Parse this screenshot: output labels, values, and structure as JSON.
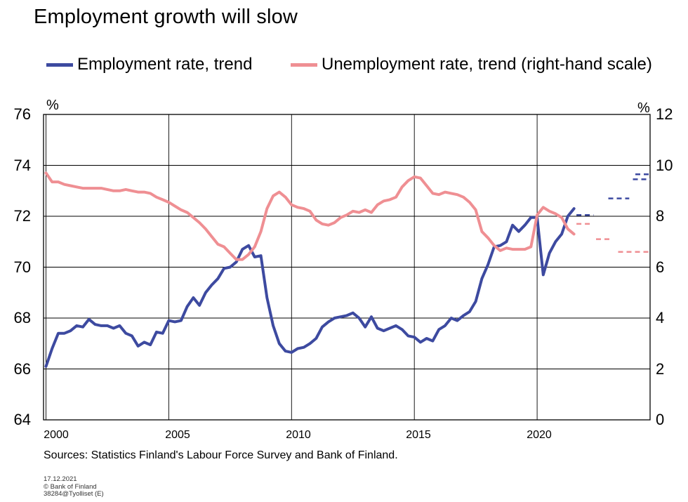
{
  "chart_data": {
    "type": "line",
    "title": "Employment growth will slow",
    "left_axis": {
      "unit": "%",
      "ylim": [
        64,
        76
      ],
      "ticks": [
        64,
        66,
        68,
        70,
        72,
        74,
        76
      ]
    },
    "right_axis": {
      "unit": "%",
      "ylim": [
        0,
        12
      ],
      "ticks": [
        0,
        2,
        4,
        6,
        8,
        10,
        12
      ]
    },
    "x_axis": {
      "xlim": [
        1999.9,
        2024.6
      ],
      "ticks": [
        2000,
        2005,
        2010,
        2015,
        2020
      ],
      "grid": true
    },
    "legend_placement": "top",
    "series": [
      {
        "name": "Employment rate, trend",
        "axis": "left",
        "color": "#3d4aa0",
        "x": [
          2000.0,
          2000.25,
          2000.5,
          2000.75,
          2001.0,
          2001.25,
          2001.5,
          2001.75,
          2002.0,
          2002.25,
          2002.5,
          2002.75,
          2003.0,
          2003.25,
          2003.5,
          2003.75,
          2004.0,
          2004.25,
          2004.5,
          2004.75,
          2005.0,
          2005.25,
          2005.5,
          2005.75,
          2006.0,
          2006.25,
          2006.5,
          2006.75,
          2007.0,
          2007.25,
          2007.5,
          2007.75,
          2008.0,
          2008.25,
          2008.5,
          2008.75,
          2009.0,
          2009.25,
          2009.5,
          2009.75,
          2010.0,
          2010.25,
          2010.5,
          2010.75,
          2011.0,
          2011.25,
          2011.5,
          2011.75,
          2012.0,
          2012.25,
          2012.5,
          2012.75,
          2013.0,
          2013.25,
          2013.5,
          2013.75,
          2014.0,
          2014.25,
          2014.5,
          2014.75,
          2015.0,
          2015.25,
          2015.5,
          2015.75,
          2016.0,
          2016.25,
          2016.5,
          2016.75,
          2017.0,
          2017.25,
          2017.5,
          2017.75,
          2018.0,
          2018.25,
          2018.5,
          2018.75,
          2019.0,
          2019.25,
          2019.5,
          2019.75,
          2020.0,
          2020.25,
          2020.5,
          2020.75,
          2021.0,
          2021.25,
          2021.5
        ],
        "values": [
          66.1,
          66.8,
          67.4,
          67.4,
          67.5,
          67.7,
          67.65,
          67.95,
          67.75,
          67.7,
          67.7,
          67.6,
          67.7,
          67.4,
          67.3,
          66.9,
          67.05,
          66.95,
          67.45,
          67.4,
          67.9,
          67.85,
          67.9,
          68.45,
          68.8,
          68.5,
          69.0,
          69.3,
          69.55,
          69.95,
          70.0,
          70.2,
          70.7,
          70.85,
          70.4,
          70.45,
          68.8,
          67.7,
          67.0,
          66.7,
          66.65,
          66.8,
          66.85,
          67.0,
          67.2,
          67.65,
          67.85,
          68.0,
          68.05,
          68.1,
          68.2,
          68.0,
          67.65,
          68.05,
          67.6,
          67.5,
          67.6,
          67.7,
          67.55,
          67.3,
          67.25,
          67.05,
          67.2,
          67.1,
          67.55,
          67.7,
          68.0,
          67.9,
          68.1,
          68.25,
          68.65,
          69.55,
          70.1,
          70.8,
          70.85,
          71.0,
          71.65,
          71.4,
          71.65,
          71.95,
          71.95,
          69.7,
          70.55,
          71.0,
          71.3,
          72.0,
          72.3
        ]
      },
      {
        "name": "Unemployment rate, trend (right-hand scale)",
        "axis": "right",
        "color": "#ef8f93",
        "x": [
          2000.0,
          2000.25,
          2000.5,
          2000.75,
          2001.0,
          2001.25,
          2001.5,
          2001.75,
          2002.0,
          2002.25,
          2002.5,
          2002.75,
          2003.0,
          2003.25,
          2003.5,
          2003.75,
          2004.0,
          2004.25,
          2004.5,
          2004.75,
          2005.0,
          2005.25,
          2005.5,
          2005.75,
          2006.0,
          2006.25,
          2006.5,
          2006.75,
          2007.0,
          2007.25,
          2007.5,
          2007.75,
          2008.0,
          2008.25,
          2008.5,
          2008.75,
          2009.0,
          2009.25,
          2009.5,
          2009.75,
          2010.0,
          2010.25,
          2010.5,
          2010.75,
          2011.0,
          2011.25,
          2011.5,
          2011.75,
          2012.0,
          2012.25,
          2012.5,
          2012.75,
          2013.0,
          2013.25,
          2013.5,
          2013.75,
          2014.0,
          2014.25,
          2014.5,
          2014.75,
          2015.0,
          2015.25,
          2015.5,
          2015.75,
          2016.0,
          2016.25,
          2016.5,
          2016.75,
          2017.0,
          2017.25,
          2017.5,
          2017.75,
          2018.0,
          2018.25,
          2018.5,
          2018.75,
          2019.0,
          2019.25,
          2019.5,
          2019.75,
          2020.0,
          2020.25,
          2020.5,
          2020.75,
          2021.0,
          2021.25,
          2021.5
        ],
        "values": [
          9.7,
          9.35,
          9.35,
          9.25,
          9.2,
          9.15,
          9.1,
          9.1,
          9.1,
          9.1,
          9.05,
          9.0,
          9.0,
          9.05,
          9.0,
          8.95,
          8.95,
          8.9,
          8.75,
          8.65,
          8.55,
          8.4,
          8.25,
          8.15,
          7.95,
          7.75,
          7.5,
          7.2,
          6.9,
          6.8,
          6.55,
          6.3,
          6.3,
          6.5,
          6.8,
          7.4,
          8.3,
          8.8,
          8.95,
          8.75,
          8.45,
          8.35,
          8.3,
          8.2,
          7.85,
          7.7,
          7.65,
          7.75,
          7.95,
          8.05,
          8.2,
          8.15,
          8.25,
          8.15,
          8.45,
          8.6,
          8.65,
          8.75,
          9.15,
          9.4,
          9.55,
          9.5,
          9.2,
          8.9,
          8.85,
          8.95,
          8.9,
          8.85,
          8.75,
          8.55,
          8.25,
          7.4,
          7.15,
          6.85,
          6.65,
          6.75,
          6.7,
          6.7,
          6.7,
          6.8,
          8.05,
          8.35,
          8.2,
          8.1,
          7.95,
          7.5,
          7.3
        ]
      }
    ],
    "forecasts": [
      {
        "series": "Employment rate, trend",
        "axis": "left",
        "color": "#3d4aa0",
        "segments": [
          {
            "x": [
              2021.6,
              2022.3
            ],
            "y": 72.05
          },
          {
            "x": [
              2022.9,
              2023.75
            ],
            "y": 72.7
          },
          {
            "x": [
              2023.9,
              2024.6
            ],
            "y": 73.45
          },
          {
            "x": [
              2024.0,
              2024.6
            ],
            "y": 73.65
          }
        ]
      },
      {
        "series": "Unemployment rate, trend (right-hand scale)",
        "axis": "right",
        "color": "#ef8f93",
        "segments": [
          {
            "x": [
              2021.6,
              2022.2
            ],
            "y": 7.7
          },
          {
            "x": [
              2022.4,
              2023.05
            ],
            "y": 7.1
          },
          {
            "x": [
              2023.3,
              2024.6
            ],
            "y": 6.6
          }
        ]
      }
    ]
  },
  "title": "Employment growth will slow",
  "legend": [
    {
      "label": "Employment rate, trend",
      "color": "#3d4aa0"
    },
    {
      "label": "Unemployment rate, trend (right-hand scale)",
      "color": "#ef8f93"
    }
  ],
  "axes": {
    "left_unit": "%",
    "right_unit": "%",
    "left_ticks": [
      "76",
      "74",
      "72",
      "70",
      "68",
      "66",
      "64"
    ],
    "right_ticks": [
      "12",
      "10",
      "8",
      "6",
      "4",
      "2",
      "0"
    ],
    "x_ticks": [
      "2000",
      "2005",
      "2010",
      "2015",
      "2020"
    ]
  },
  "source": "Sources: Statistics Finland's Labour Force Survey and Bank of Finland.",
  "meta": {
    "date": "17.12.2021",
    "copyright": "© Bank of Finland",
    "code": "38284@Tyolliset  (E)"
  }
}
